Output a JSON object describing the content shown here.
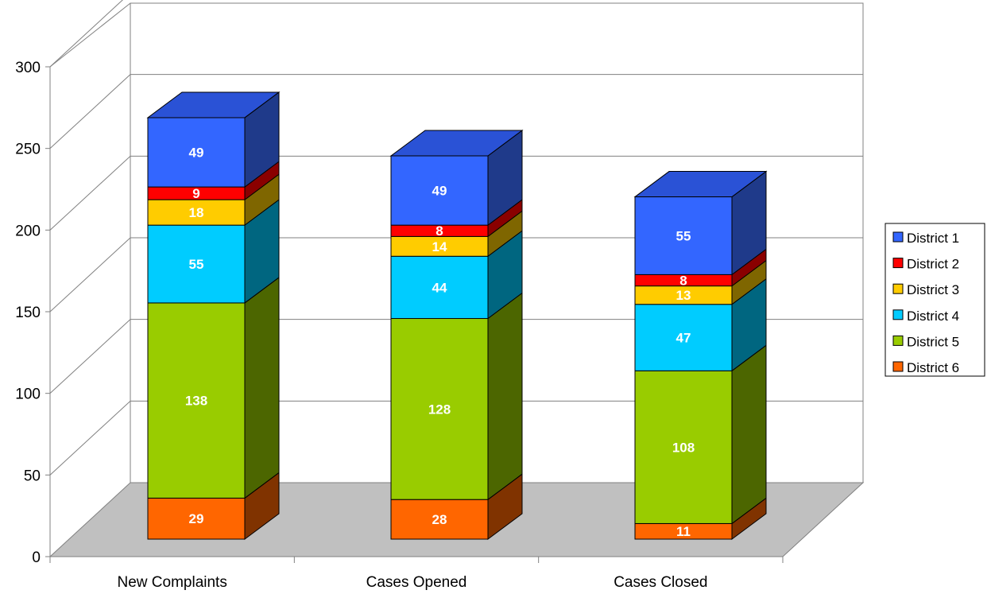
{
  "chart_data": {
    "type": "bar",
    "stacked": true,
    "three_d": true,
    "categories": [
      "New Complaints",
      "Cases Opened",
      "Cases Closed"
    ],
    "series": [
      {
        "name": "District 6",
        "values": [
          29,
          28,
          11
        ]
      },
      {
        "name": "District 5",
        "values": [
          138,
          128,
          108
        ]
      },
      {
        "name": "District 4",
        "values": [
          55,
          44,
          47
        ]
      },
      {
        "name": "District 3",
        "values": [
          18,
          14,
          13
        ]
      },
      {
        "name": "District 2",
        "values": [
          9,
          8,
          8
        ]
      },
      {
        "name": "District 1",
        "values": [
          49,
          49,
          55
        ]
      }
    ],
    "colors": {
      "District 1": {
        "front": "#3366ff",
        "top": "#2a52d6",
        "side": "#1f3a8a"
      },
      "District 2": {
        "front": "#ff0000",
        "top": "#cc0000",
        "side": "#8a0000"
      },
      "District 3": {
        "front": "#ffcc00",
        "top": "#d9ad00",
        "side": "#7f6600"
      },
      "District 4": {
        "front": "#00ccff",
        "top": "#00a8d6",
        "side": "#006680"
      },
      "District 5": {
        "front": "#99cc00",
        "top": "#80ad00",
        "side": "#4c6600"
      },
      "District 6": {
        "front": "#ff6600",
        "top": "#d95700",
        "side": "#803300"
      }
    },
    "legend_order": [
      "District 1",
      "District 2",
      "District 3",
      "District 4",
      "District 5",
      "District 6"
    ],
    "y_ticks": [
      "0",
      "50",
      "100",
      "150",
      "200",
      "250",
      "300"
    ],
    "ylim": [
      0,
      300
    ],
    "grid": true,
    "legend_position": "right",
    "wall_color": "#ffffff",
    "floor_color": "#c0c0c0",
    "title": "",
    "xlabel": "",
    "ylabel": ""
  }
}
